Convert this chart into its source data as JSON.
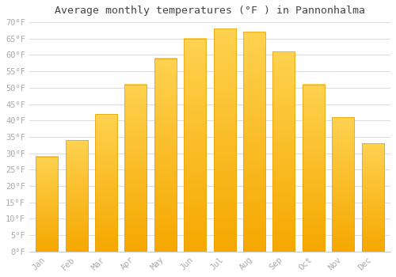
{
  "months": [
    "Jan",
    "Feb",
    "Mar",
    "Apr",
    "May",
    "Jun",
    "Jul",
    "Aug",
    "Sep",
    "Oct",
    "Nov",
    "Dec"
  ],
  "values": [
    29,
    34,
    42,
    51,
    59,
    65,
    68,
    67,
    61,
    51,
    41,
    33
  ],
  "bar_color_top": "#FFD060",
  "bar_color_bottom": "#F5A800",
  "title": "Average monthly temperatures (°F ) in Pannonhalma",
  "ylim": [
    0,
    70
  ],
  "yticks": [
    0,
    5,
    10,
    15,
    20,
    25,
    30,
    35,
    40,
    45,
    50,
    55,
    60,
    65,
    70
  ],
  "ytick_labels": [
    "0°F",
    "5°F",
    "10°F",
    "15°F",
    "20°F",
    "25°F",
    "30°F",
    "35°F",
    "40°F",
    "45°F",
    "50°F",
    "55°F",
    "60°F",
    "65°F",
    "70°F"
  ],
  "background_color": "#ffffff",
  "plot_bg_color": "#ffffff",
  "grid_color": "#dddddd",
  "title_fontsize": 9.5,
  "tick_fontsize": 7.5,
  "font_family": "monospace",
  "tick_color": "#aaaaaa"
}
